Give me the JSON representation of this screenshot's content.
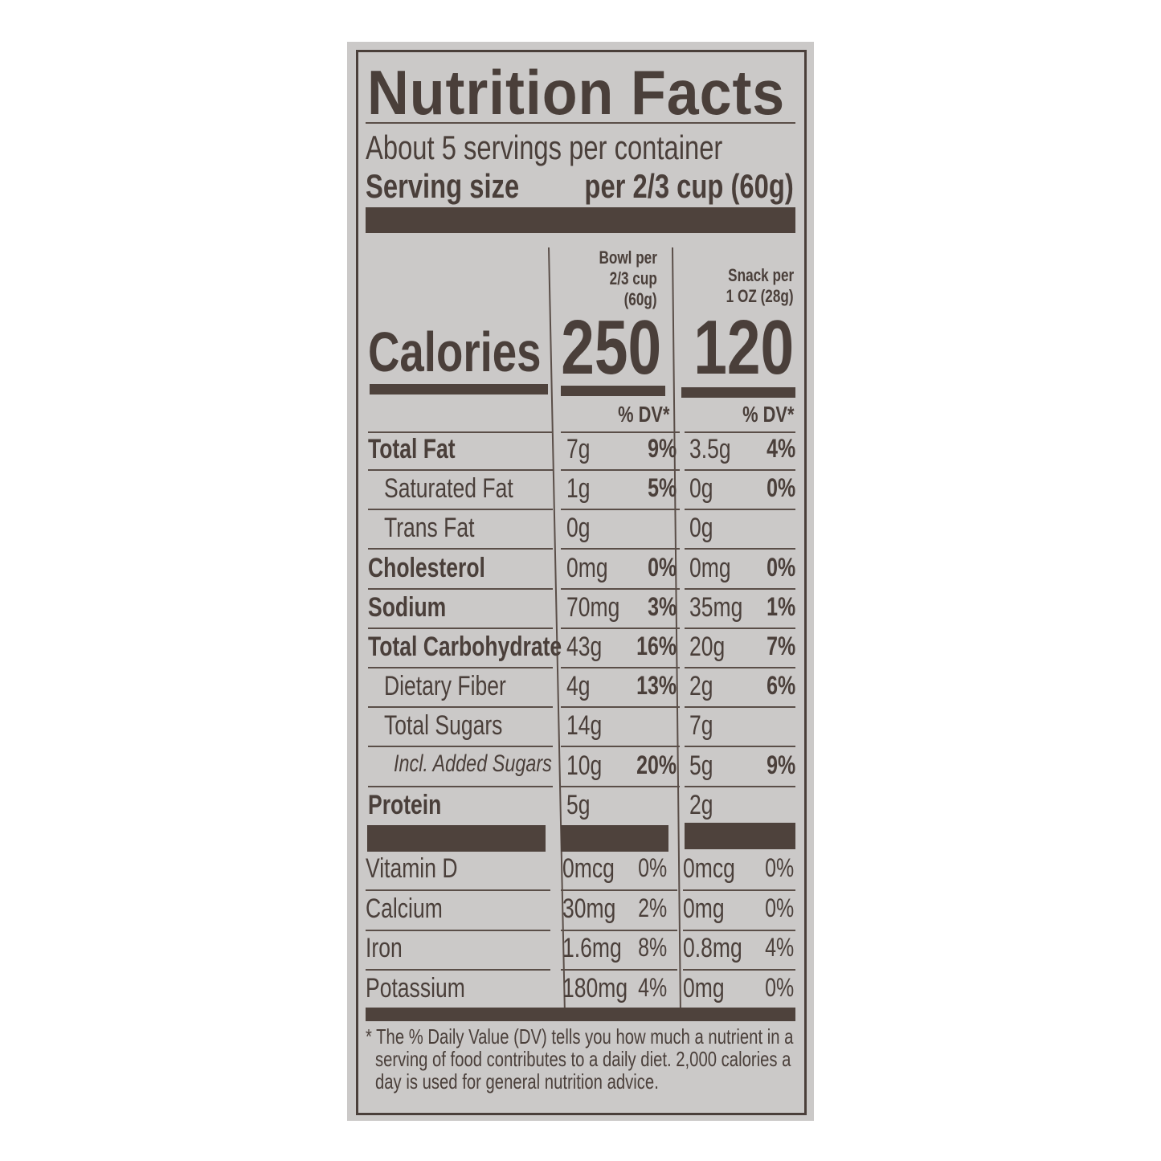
{
  "colors": {
    "background": "#cbc9c8",
    "ink": "#4a3f3a"
  },
  "title": "Nutrition Facts",
  "servings_per_container": "About 5 servings per container",
  "serving_size_label": "Serving size",
  "serving_size_value": "per 2/3 cup (60g)",
  "columns": [
    {
      "header_lines": [
        "Bowl per",
        "2/3 cup",
        "(60g)"
      ],
      "calories": "250",
      "dv_header": "% DV*"
    },
    {
      "header_lines": [
        "Snack per",
        "1 OZ (28g)"
      ],
      "calories": "120",
      "dv_header": "% DV*"
    }
  ],
  "calories_label": "Calories",
  "nutrients": [
    {
      "name": "Total Fat",
      "bold": true,
      "indent": 0,
      "italic": false,
      "values": [
        [
          "7g",
          "9%"
        ],
        [
          "3.5g",
          "4%"
        ]
      ]
    },
    {
      "name": "Saturated Fat",
      "bold": false,
      "indent": 1,
      "italic": false,
      "values": [
        [
          "1g",
          "5%"
        ],
        [
          "0g",
          "0%"
        ]
      ]
    },
    {
      "name": "Trans Fat",
      "bold": false,
      "indent": 1,
      "italic": false,
      "values": [
        [
          "0g",
          ""
        ],
        [
          "0g",
          ""
        ]
      ]
    },
    {
      "name": "Cholesterol",
      "bold": true,
      "indent": 0,
      "italic": false,
      "values": [
        [
          "0mg",
          "0%"
        ],
        [
          "0mg",
          "0%"
        ]
      ]
    },
    {
      "name": "Sodium",
      "bold": true,
      "indent": 0,
      "italic": false,
      "values": [
        [
          "70mg",
          "3%"
        ],
        [
          "35mg",
          "1%"
        ]
      ]
    },
    {
      "name": "Total Carbohydrate",
      "bold": true,
      "indent": 0,
      "italic": false,
      "values": [
        [
          "43g",
          "16%"
        ],
        [
          "20g",
          "7%"
        ]
      ]
    },
    {
      "name": "Dietary Fiber",
      "bold": false,
      "indent": 1,
      "italic": false,
      "values": [
        [
          "4g",
          "13%"
        ],
        [
          "2g",
          "6%"
        ]
      ]
    },
    {
      "name": "Total Sugars",
      "bold": false,
      "indent": 1,
      "italic": false,
      "values": [
        [
          "14g",
          ""
        ],
        [
          "7g",
          ""
        ]
      ]
    },
    {
      "name": "Incl. Added Sugars",
      "bold": false,
      "indent": 2,
      "italic": true,
      "values": [
        [
          "10g",
          "20%"
        ],
        [
          "5g",
          "9%"
        ]
      ]
    },
    {
      "name": "Protein",
      "bold": true,
      "indent": 0,
      "italic": false,
      "values": [
        [
          "5g",
          ""
        ],
        [
          "2g",
          ""
        ]
      ]
    }
  ],
  "vitamins": [
    {
      "name": "Vitamin D",
      "values": [
        [
          "0mcg",
          "0%"
        ],
        [
          "0mcg",
          "0%"
        ]
      ]
    },
    {
      "name": "Calcium",
      "values": [
        [
          "30mg",
          "2%"
        ],
        [
          "0mg",
          "0%"
        ]
      ]
    },
    {
      "name": "Iron",
      "values": [
        [
          "1.6mg",
          "8%"
        ],
        [
          "0.8mg",
          "4%"
        ]
      ]
    },
    {
      "name": "Potassium",
      "values": [
        [
          "180mg",
          "4%"
        ],
        [
          "0mg",
          "0%"
        ]
      ]
    }
  ],
  "footnote_lines": [
    "* The % Daily Value (DV) tells you how much a nutrient in a",
    "serving of food contributes to a daily diet. 2,000 calories a",
    "day is used for general nutrition advice."
  ]
}
